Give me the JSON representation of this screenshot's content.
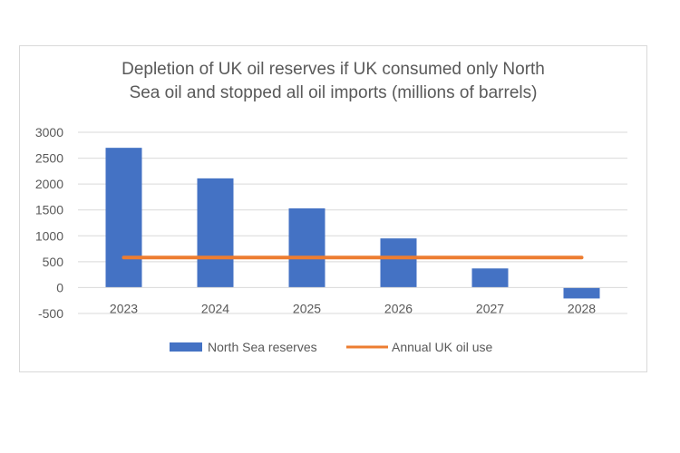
{
  "chart_data": {
    "type": "bar",
    "title_lines": [
      "Depletion of UK oil reserves if UK consumed only North",
      "Sea oil and stopped all oil imports (millions of barrels)"
    ],
    "categories": [
      "2023",
      "2024",
      "2025",
      "2026",
      "2027",
      "2028"
    ],
    "series": [
      {
        "name": "North Sea reserves",
        "type": "bar",
        "color": "#4472c4",
        "values": [
          2700,
          2110,
          1530,
          950,
          370,
          -210
        ]
      },
      {
        "name": "Annual UK oil use",
        "type": "line",
        "color": "#ed7d31",
        "values": [
          580,
          580,
          580,
          580,
          580,
          580
        ]
      }
    ],
    "y_ticks": [
      "3000",
      "2500",
      "2000",
      "1500",
      "1000",
      "500",
      "0",
      "-500"
    ],
    "ylim": [
      -500,
      3000
    ],
    "grid": true,
    "legend_position": "bottom"
  }
}
